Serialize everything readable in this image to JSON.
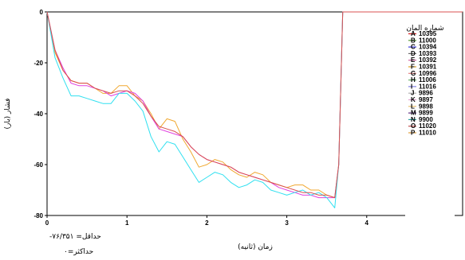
{
  "chart_data": {
    "type": "line",
    "xlabel": "زمان (ثانیه)",
    "ylabel": "فشار (بار)",
    "xlim": [
      0,
      5.2
    ],
    "ylim": [
      -80,
      0
    ],
    "xticks": [
      0,
      1,
      2,
      3,
      4,
      5
    ],
    "yticks": [
      0,
      -20,
      -40,
      -60,
      -80
    ],
    "grid": false,
    "legend_title": "شماره المان",
    "legend_position": "top-right",
    "legend": [
      {
        "letter": "A",
        "name": "10395",
        "color": "#d61a1a"
      },
      {
        "letter": "B",
        "name": "11000",
        "color": "#5a9a3a"
      },
      {
        "letter": "C",
        "name": "10394",
        "color": "#3b3bd6"
      },
      {
        "letter": "D",
        "name": "10393",
        "color": "#6a6a6a"
      },
      {
        "letter": "E",
        "name": "10392",
        "color": "#d060a0"
      },
      {
        "letter": "F",
        "name": "10391",
        "color": "#e0a020"
      },
      {
        "letter": "G",
        "name": "10996",
        "color": "#e08080"
      },
      {
        "letter": "H",
        "name": "11006",
        "color": "#70b070"
      },
      {
        "letter": "I",
        "name": "11016",
        "color": "#8080e0"
      },
      {
        "letter": "J",
        "name": "9896",
        "color": "#b0b0b0"
      },
      {
        "letter": "K",
        "name": "9897",
        "color": "#e0a0d0"
      },
      {
        "letter": "L",
        "name": "9898",
        "color": "#e8c070"
      },
      {
        "letter": "M",
        "name": "9899",
        "color": "#603080"
      },
      {
        "letter": "N",
        "name": "9900",
        "color": "#30a0a0"
      },
      {
        "letter": "O",
        "name": "11020",
        "color": "#c05050"
      },
      {
        "letter": "P",
        "name": "11010",
        "color": "#e0a040"
      }
    ],
    "series": [
      {
        "color": "#f0a830",
        "x": [
          0,
          0.1,
          0.2,
          0.3,
          0.4,
          0.5,
          0.6,
          0.7,
          0.8,
          0.9,
          1.0,
          1.1,
          1.2,
          1.3,
          1.4,
          1.5,
          1.6,
          1.7,
          1.8,
          1.9,
          2.0,
          2.1,
          2.2,
          2.3,
          2.4,
          2.5,
          2.6,
          2.7,
          2.8,
          2.9,
          3.0,
          3.1,
          3.2,
          3.3,
          3.4,
          3.5,
          3.6,
          3.65,
          3.7,
          5.2
        ],
        "y": [
          0,
          -16,
          -23,
          -27,
          -28,
          -28,
          -30,
          -32,
          -32,
          -29,
          -29,
          -33,
          -35,
          -40,
          -46,
          -42,
          -43,
          -50,
          -55,
          -61,
          -60,
          -58,
          -59,
          -62,
          -64,
          -65,
          -63,
          -64,
          -67,
          -68,
          -69,
          -68,
          -68,
          -70,
          -70,
          -72,
          -73,
          -60,
          0,
          0
        ]
      },
      {
        "color": "#e040e0",
        "x": [
          0,
          0.1,
          0.2,
          0.3,
          0.4,
          0.5,
          0.6,
          0.7,
          0.8,
          0.9,
          1.0,
          1.1,
          1.2,
          1.3,
          1.4,
          1.5,
          1.6,
          1.7,
          1.8,
          1.9,
          2.0,
          2.1,
          2.2,
          2.3,
          2.4,
          2.5,
          2.6,
          2.7,
          2.8,
          2.9,
          3.0,
          3.1,
          3.2,
          3.3,
          3.4,
          3.5,
          3.6,
          3.65,
          3.7,
          5.2
        ],
        "y": [
          0,
          -15,
          -22,
          -28,
          -29,
          -29,
          -30,
          -31,
          -33,
          -32,
          -31,
          -32,
          -35,
          -41,
          -46,
          -47,
          -48,
          -49,
          -53,
          -56,
          -58,
          -59,
          -60,
          -61,
          -63,
          -64,
          -65,
          -66,
          -67,
          -69,
          -70,
          -71,
          -72,
          -72,
          -73,
          -73,
          -73,
          -60,
          0,
          0
        ]
      },
      {
        "color": "#30e0f0",
        "x": [
          0,
          0.1,
          0.2,
          0.3,
          0.4,
          0.5,
          0.6,
          0.7,
          0.8,
          0.9,
          1.0,
          1.1,
          1.2,
          1.3,
          1.4,
          1.5,
          1.6,
          1.7,
          1.8,
          1.9,
          2.0,
          2.1,
          2.2,
          2.3,
          2.4,
          2.5,
          2.6,
          2.7,
          2.8,
          2.9,
          3.0,
          3.1,
          3.2,
          3.3,
          3.4,
          3.5,
          3.6,
          3.65,
          3.7,
          5.2
        ],
        "y": [
          0,
          -18,
          -26,
          -33,
          -33,
          -34,
          -35,
          -36,
          -36,
          -32,
          -32,
          -35,
          -39,
          -49,
          -55,
          -51,
          -52,
          -57,
          -62,
          -67,
          -65,
          -63,
          -64,
          -67,
          -69,
          -68,
          -66,
          -67,
          -70,
          -71,
          -72,
          -71,
          -70,
          -72,
          -71,
          -73,
          -77,
          -60,
          0,
          0
        ]
      },
      {
        "color": "#d85050",
        "x": [
          0,
          0.1,
          0.2,
          0.3,
          0.4,
          0.5,
          0.6,
          0.7,
          0.8,
          0.9,
          1.0,
          1.1,
          1.2,
          1.3,
          1.4,
          1.5,
          1.6,
          1.7,
          1.8,
          1.9,
          2.0,
          2.1,
          2.2,
          2.3,
          2.4,
          2.5,
          2.6,
          2.7,
          2.8,
          2.9,
          3.0,
          3.1,
          3.2,
          3.3,
          3.4,
          3.5,
          3.6,
          3.65,
          3.7,
          5.2
        ],
        "y": [
          0,
          -15,
          -23,
          -27,
          -28,
          -28,
          -30,
          -31,
          -32,
          -31,
          -31,
          -33,
          -36,
          -41,
          -45,
          -46,
          -47,
          -49,
          -53,
          -56,
          -58,
          -59,
          -60,
          -61,
          -63,
          -64,
          -65,
          -66,
          -67,
          -68,
          -69,
          -70,
          -71,
          -71,
          -72,
          -72,
          -73,
          -60,
          0,
          0
        ]
      }
    ]
  },
  "notes": {
    "min_label": "حداقل= ۷۶/۳۵۱-",
    "max_label": "حداکثر=۰"
  }
}
